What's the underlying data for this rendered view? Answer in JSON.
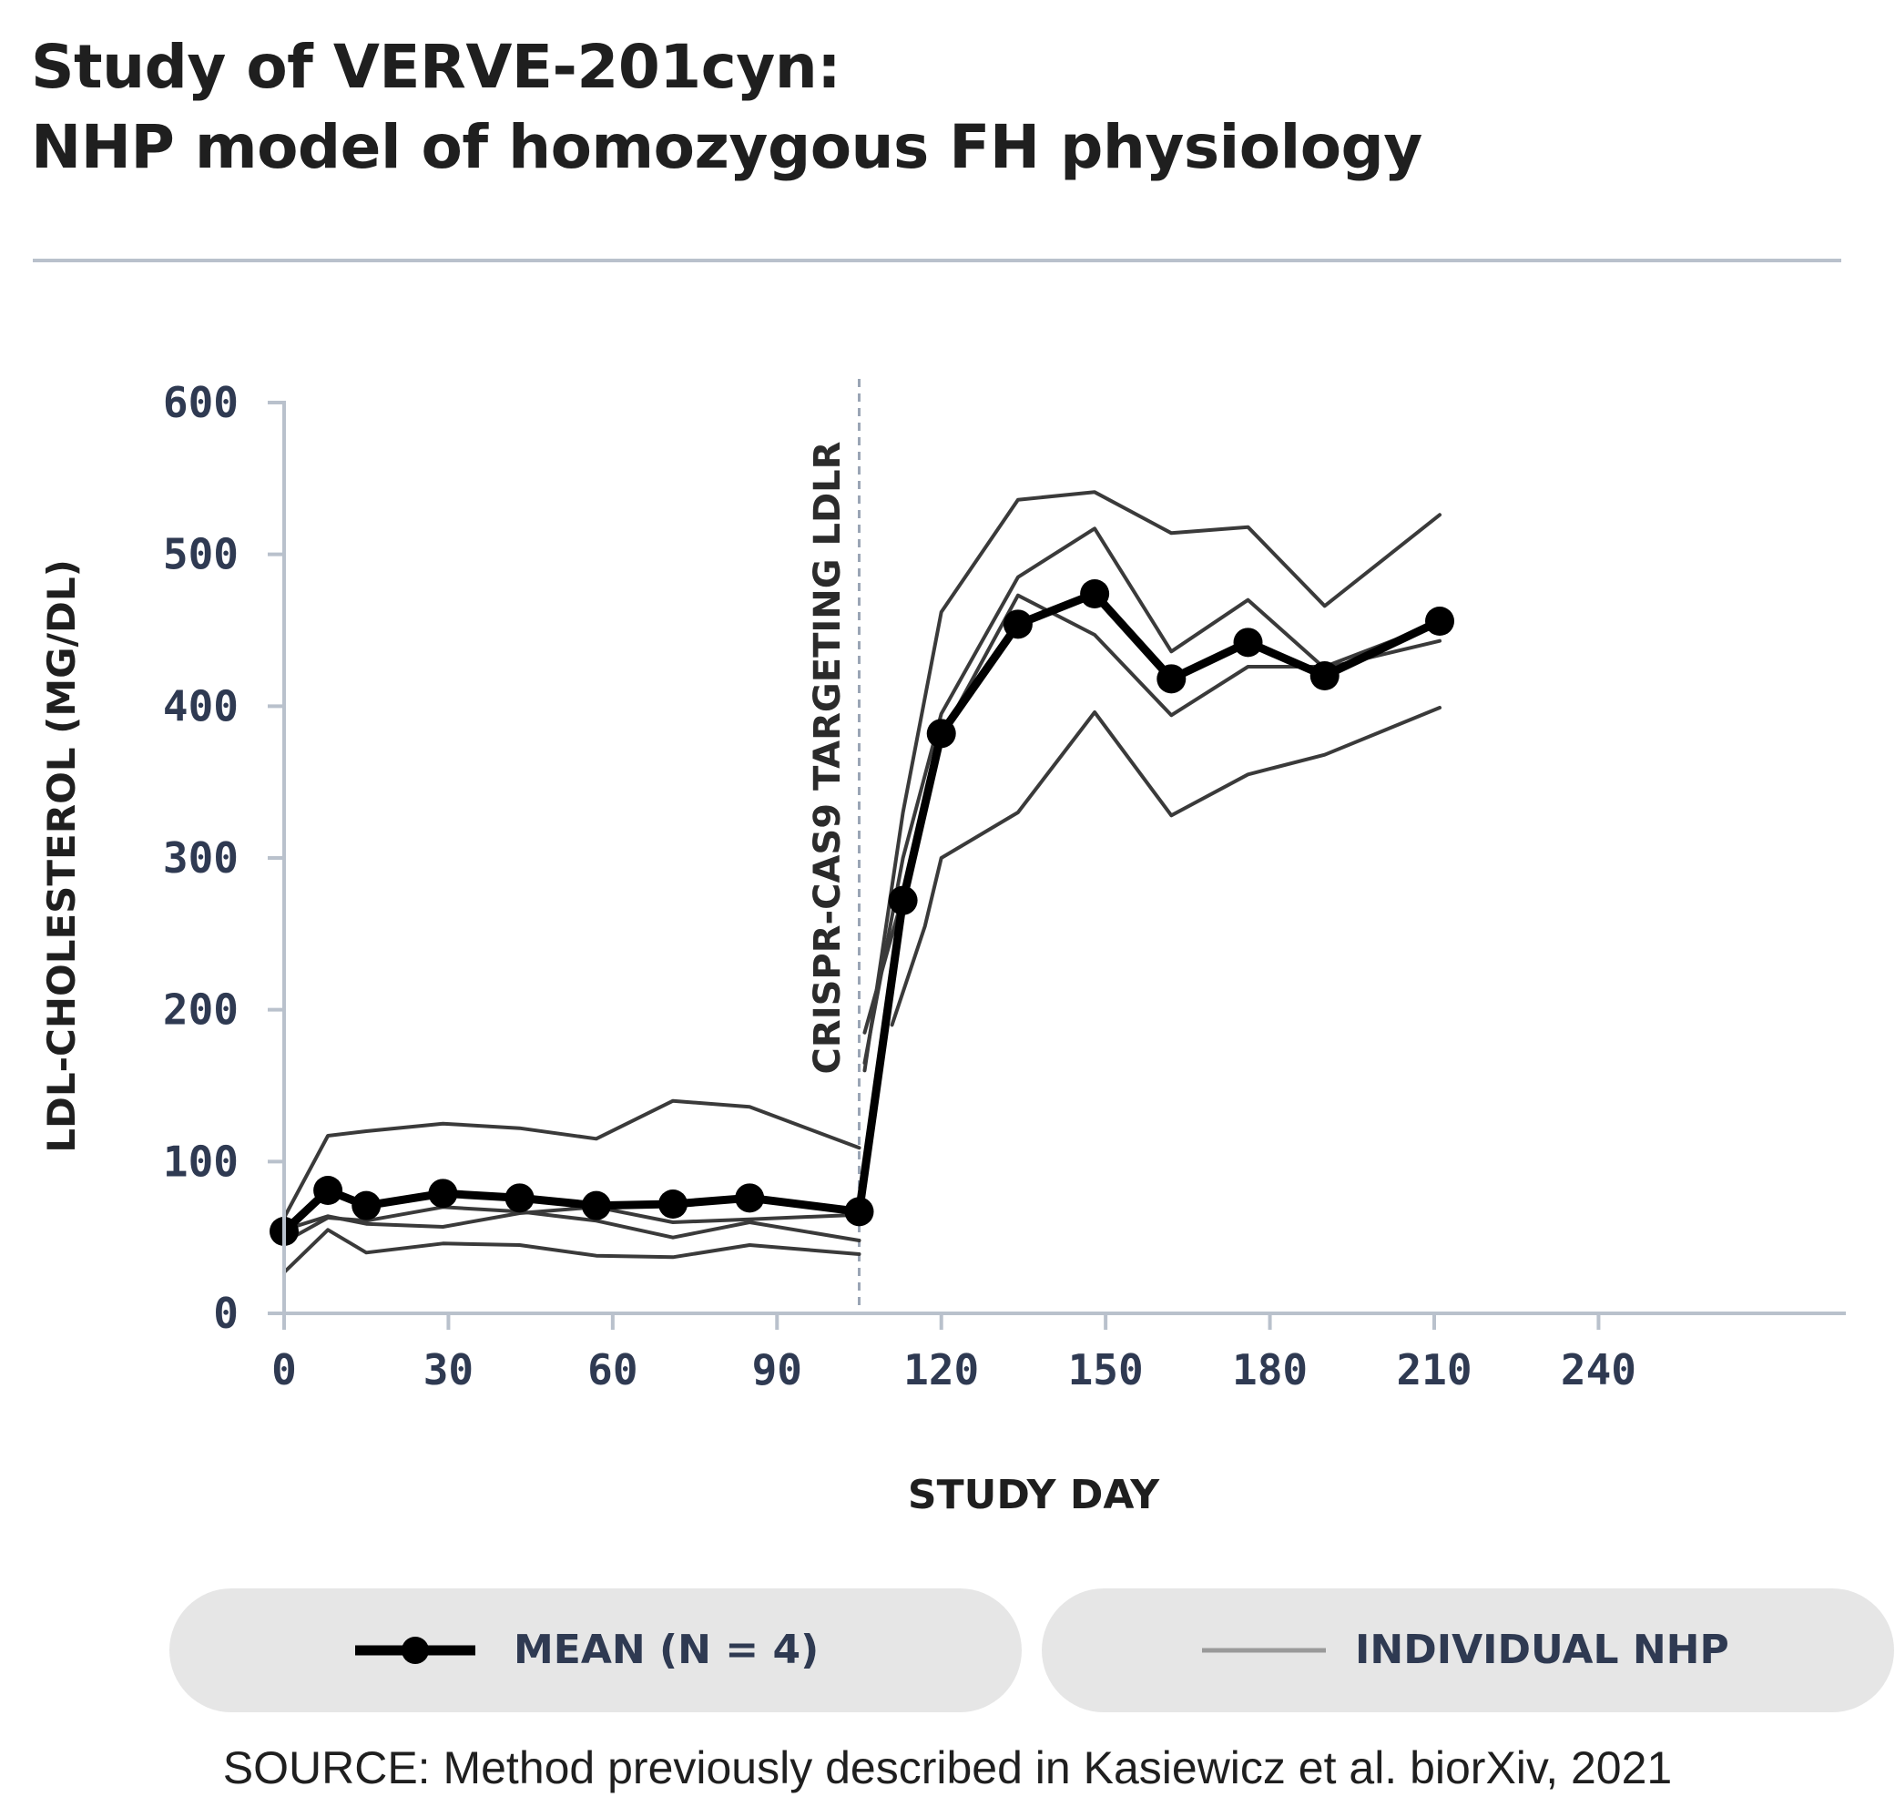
{
  "header": {
    "title_line1": "Study of VERVE-201cyn:",
    "title_line2": "NHP model of homozygous FH physiology"
  },
  "source": "SOURCE: Method previously described in Kasiewicz et al. biorXiv, 2021",
  "chart_data": {
    "type": "line",
    "xlabel": "STUDY DAY",
    "ylabel": "LDL-CHOLESTEROL (MG/DL)",
    "xlim": [
      0,
      285
    ],
    "ylim": [
      0,
      600
    ],
    "x_ticks": [
      0,
      30,
      60,
      90,
      120,
      150,
      180,
      210,
      240
    ],
    "y_ticks": [
      0,
      100,
      200,
      300,
      400,
      500,
      600
    ],
    "grid": false,
    "legend_position": "bottom",
    "annotation": {
      "text": "CRISPR-CAS9 TARGETING LDLR",
      "x": 105
    },
    "series": [
      {
        "name": "MEAN (N = 4)",
        "style": "mean",
        "color": "#000000",
        "x": [
          0,
          8,
          15,
          29,
          43,
          57,
          71,
          85,
          105,
          113,
          120,
          134,
          148,
          162,
          176,
          190,
          211
        ],
        "y": [
          54,
          81,
          71,
          79,
          76,
          71,
          72,
          76,
          67,
          272,
          382,
          454,
          474,
          418,
          442,
          420,
          456
        ]
      },
      {
        "name": "INDIVIDUAL NHP",
        "style": "individual",
        "color": "#3a3a3a",
        "segments": [
          {
            "x": [
              0,
              8,
              15,
              29,
              43,
              57,
              71,
              85,
              105
            ],
            "y": [
              63,
              117,
              120,
              125,
              122,
              115,
              140,
              136,
              109
            ]
          },
          {
            "x": [
              0,
              8,
              15,
              29,
              43,
              57,
              71,
              85,
              105
            ],
            "y": [
              55,
              64,
              59,
              57,
              66,
              70,
              60,
              62,
              65
            ]
          },
          {
            "x": [
              0,
              8,
              15,
              29,
              43,
              57,
              71,
              85,
              105
            ],
            "y": [
              47,
              63,
              61,
              70,
              67,
              61,
              50,
              60,
              48
            ]
          },
          {
            "x": [
              0,
              8,
              15,
              29,
              43,
              57,
              71,
              85,
              105
            ],
            "y": [
              27,
              55,
              40,
              46,
              45,
              38,
              37,
              45,
              39
            ]
          },
          {
            "x": [
              106,
              113,
              120,
              134,
              148,
              162,
              176,
              190,
              211
            ],
            "y": [
              160,
              330,
              462,
              536,
              541,
              514,
              518,
              466,
              526
            ]
          },
          {
            "x": [
              106,
              113,
              120,
              134,
              148,
              162,
              176,
              190,
              211
            ],
            "y": [
              165,
              300,
              395,
              485,
              517,
              436,
              470,
              425,
              443
            ]
          },
          {
            "x": [
              106,
              113,
              120,
              134,
              148,
              162,
              176,
              190,
              211
            ],
            "y": [
              185,
              275,
              380,
              473,
              447,
              394,
              426,
              426,
              455
            ]
          },
          {
            "x": [
              111,
              117,
              120,
              134,
              148,
              162,
              176,
              190,
              211
            ],
            "y": [
              190,
              255,
              300,
              330,
              396,
              328,
              355,
              368,
              399
            ]
          }
        ]
      }
    ]
  },
  "colors": {
    "axis": "#b9c1cc",
    "tick_text": "#2f3a52",
    "mean": "#000000",
    "individual": "#3a3a3a",
    "legend_individual": "#9a9a9a",
    "annotation_line": "#9aa5b5"
  }
}
